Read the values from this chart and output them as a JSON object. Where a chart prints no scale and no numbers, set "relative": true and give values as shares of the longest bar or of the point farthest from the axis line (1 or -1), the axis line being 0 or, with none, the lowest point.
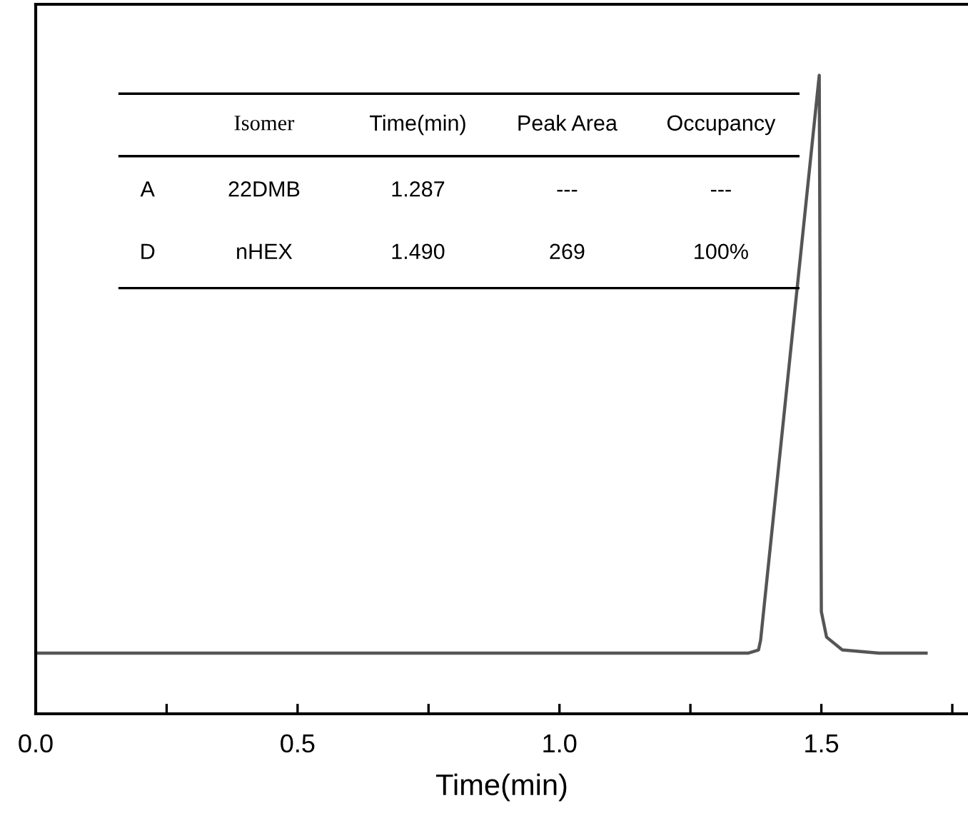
{
  "chart_data": {
    "type": "line",
    "relative": true,
    "xlabel": "Time(min)",
    "xlim": [
      0,
      1.78
    ],
    "xticks": [
      {
        "value": 0,
        "label": "0.0"
      },
      {
        "value": 0.25,
        "label": null
      },
      {
        "value": 0.5,
        "label": "0.5"
      },
      {
        "value": 0.75,
        "label": null
      },
      {
        "value": 1.0,
        "label": "1.0"
      },
      {
        "value": 1.25,
        "label": null
      },
      {
        "value": 1.5,
        "label": "1.5"
      },
      {
        "value": 1.75,
        "label": null
      }
    ],
    "tick_labels": "x",
    "grid": false,
    "legend": false,
    "marker": "none",
    "line_style": "solid",
    "series": [
      {
        "color": "#555555",
        "x": [
          0,
          1.36,
          1.38,
          1.384,
          1.496,
          1.5,
          1.51,
          1.54,
          1.61,
          1.7
        ],
        "values": [
          0.095,
          0.095,
          0.1,
          0.115,
          1.0,
          0.16,
          0.12,
          0.1,
          0.095,
          0.095
        ]
      }
    ],
    "annotations": [
      "Isomer",
      "Time(min)",
      "Peak Area",
      "Occupancy",
      "A",
      "22DMB",
      "1.287",
      "---",
      "---",
      "D",
      "nHEX",
      "1.490",
      "269",
      "100%"
    ]
  }
}
